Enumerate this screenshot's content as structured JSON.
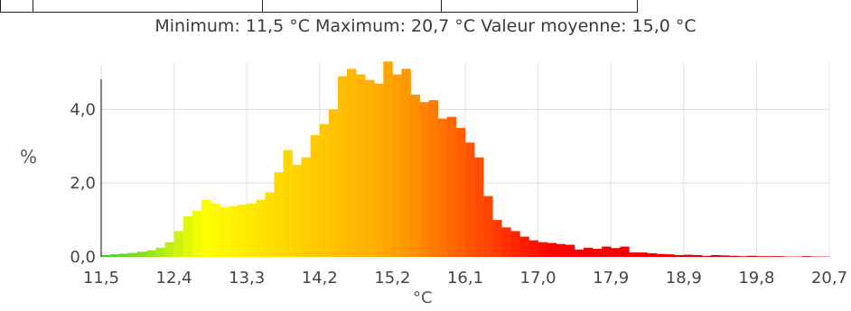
{
  "header": {
    "stats_text": "Minimum: 11,5 °C Maximum: 20,7 °C Valeur moyenne: 15,0 °C"
  },
  "chart_data": {
    "type": "bar",
    "title": "",
    "xlabel": "°C",
    "ylabel": "%",
    "xlim": [
      11.5,
      20.7
    ],
    "ylim": [
      0,
      5.5
    ],
    "x_ticks": [
      "11,5",
      "12,4",
      "13,3",
      "14,2",
      "15,2",
      "16,1",
      "17,0",
      "17,9",
      "18,9",
      "19,8",
      "20,7"
    ],
    "y_ticks": [
      "0,0",
      "2,0",
      "4,0"
    ],
    "y_tick_values": [
      0,
      2,
      4
    ],
    "grid": "horizontal and vertical",
    "bin_start": 11.5,
    "bin_width": 0.115,
    "values": [
      0.05,
      0.07,
      0.09,
      0.11,
      0.14,
      0.18,
      0.25,
      0.4,
      0.7,
      1.1,
      1.25,
      1.55,
      1.45,
      1.35,
      1.38,
      1.42,
      1.45,
      1.55,
      1.75,
      2.3,
      2.9,
      2.5,
      2.7,
      3.3,
      3.6,
      4.0,
      4.9,
      5.1,
      4.95,
      4.8,
      4.7,
      5.3,
      4.95,
      5.1,
      4.4,
      4.2,
      4.25,
      3.75,
      3.8,
      3.5,
      3.1,
      2.7,
      1.65,
      1.0,
      0.8,
      0.7,
      0.55,
      0.45,
      0.4,
      0.38,
      0.35,
      0.33,
      0.2,
      0.25,
      0.22,
      0.28,
      0.24,
      0.28,
      0.12,
      0.12,
      0.1,
      0.08,
      0.07,
      0.05,
      0.06,
      0.05,
      0.03,
      0.05,
      0.04,
      0.03,
      0.02,
      0.03,
      0.02,
      0.02,
      0.02,
      0.01,
      0.01,
      0.02,
      0.01,
      0.01
    ],
    "color_scale": [
      "#33cc33",
      "#ffff00",
      "#ffa500",
      "#ff0000",
      "#cc0000"
    ]
  }
}
